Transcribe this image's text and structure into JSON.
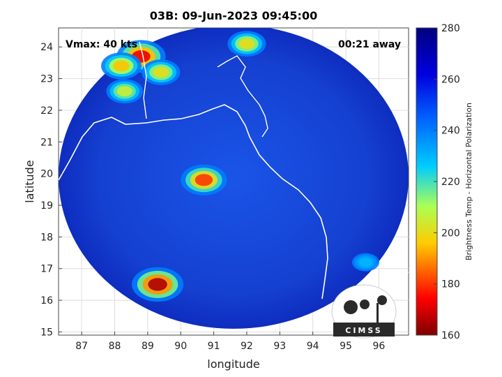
{
  "chart_data": {
    "type": "heatmap",
    "title": "03B: 09-Jun-2023 09:45:00",
    "xlabel": "longitude",
    "ylabel": "latitude",
    "xlim": [
      86.3,
      96.9
    ],
    "ylim": [
      14.9,
      24.6
    ],
    "x_ticks": [
      87,
      88,
      89,
      90,
      91,
      92,
      93,
      94,
      95,
      96
    ],
    "y_ticks": [
      15,
      16,
      17,
      18,
      19,
      20,
      21,
      22,
      23,
      24
    ],
    "grid": true,
    "annotations": {
      "vmax": "Vmax: 40 kts",
      "away": "00:21 away"
    },
    "colorbar": {
      "label": "Brightness Temp - Horizontal Polarization",
      "range": [
        160,
        280
      ],
      "ticks": [
        160,
        180,
        200,
        220,
        240,
        260,
        280
      ],
      "colormap": "jet-reversed"
    },
    "swath": {
      "center_lon": 91.6,
      "center_lat": 19.9,
      "radius_lon": 5.3,
      "radius_lat": 4.8
    },
    "cold_features": [
      {
        "lon": 89.3,
        "lat": 16.5,
        "min_temp": 165
      },
      {
        "lon": 90.7,
        "lat": 19.8,
        "min_temp": 180
      },
      {
        "lon": 88.8,
        "lat": 23.7,
        "min_temp": 172
      },
      {
        "lon": 88.2,
        "lat": 23.4,
        "min_temp": 195
      },
      {
        "lon": 89.4,
        "lat": 23.2,
        "min_temp": 200
      },
      {
        "lon": 88.3,
        "lat": 22.6,
        "min_temp": 205
      },
      {
        "lon": 92.0,
        "lat": 24.1,
        "min_temp": 200
      },
      {
        "lon": 95.6,
        "lat": 17.2,
        "min_temp": 230
      }
    ],
    "logo": "CIMSS"
  }
}
